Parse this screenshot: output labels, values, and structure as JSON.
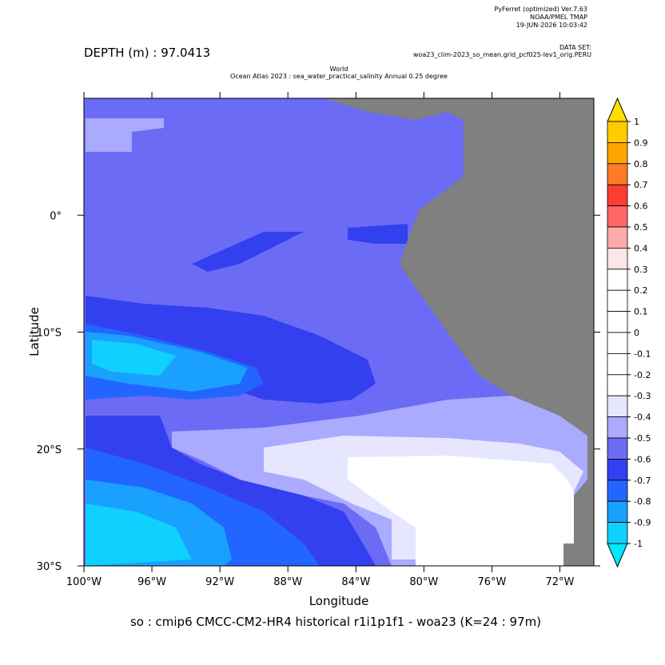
{
  "header": {
    "program": "PyFerret (optimized) Ver.7.63",
    "org": "NOAA/PMEL TMAP",
    "date": "19-JUN-2026 10:03:42",
    "dataset_label": "DATA SET:",
    "dataset": "woa23_clim-2023_so_mean.grid_pcf025-lev1_orig.PERU",
    "depth": "DEPTH (m) : 97.0413",
    "title_line1": "World",
    "title_line2": "Ocean Atlas 2023 : sea_water_practical_salinity Annual  0.25 degree"
  },
  "map": {
    "xlabel": "Longitude",
    "ylabel": "Latitude",
    "footer": "so : cmip6 CMCC-CM2-HR4 historical r1i1p1f1 - woa23  (K=24 : 97m)",
    "xlim": [
      -100,
      -70
    ],
    "ylim": [
      -30,
      10
    ],
    "xticks": [
      {
        "value": -100,
        "label": "100°W"
      },
      {
        "value": -96,
        "label": "96°W"
      },
      {
        "value": -92,
        "label": "92°W"
      },
      {
        "value": -88,
        "label": "88°W"
      },
      {
        "value": -84,
        "label": "84°W"
      },
      {
        "value": -80,
        "label": "80°W"
      },
      {
        "value": -76,
        "label": "76°W"
      },
      {
        "value": -72,
        "label": "72°W"
      }
    ],
    "yticks": [
      {
        "value": 0,
        "label": "0°"
      },
      {
        "value": -10,
        "label": "10°S"
      },
      {
        "value": -20,
        "label": "20°S"
      },
      {
        "value": -30,
        "label": "30°S"
      }
    ],
    "land_color": "#808080"
  },
  "colorbar": {
    "levels": [
      1.0,
      0.9,
      0.8,
      0.7,
      0.6,
      0.5,
      0.4,
      0.3,
      0.2,
      0.1,
      0.0,
      -0.1,
      -0.2,
      -0.3,
      -0.4,
      -0.5,
      -0.6,
      -0.7,
      -0.8,
      -0.9,
      -1.0
    ],
    "over_color": "#ffdd00",
    "under_color": "#00e8ff",
    "colors": [
      "#ffcc00",
      "#ffa400",
      "#ff7a28",
      "#ff3c30",
      "#ff6666",
      "#ffaaaa",
      "#ffe6e6",
      "#ffffff",
      "#ffffff",
      "#ffffff",
      "#ffffff",
      "#ffffff",
      "#ffffff",
      "#e6e6ff",
      "#aaaaff",
      "#6b6bf5",
      "#3340f0",
      "#2266ff",
      "#1aa0ff",
      "#10d0ff"
    ]
  }
}
